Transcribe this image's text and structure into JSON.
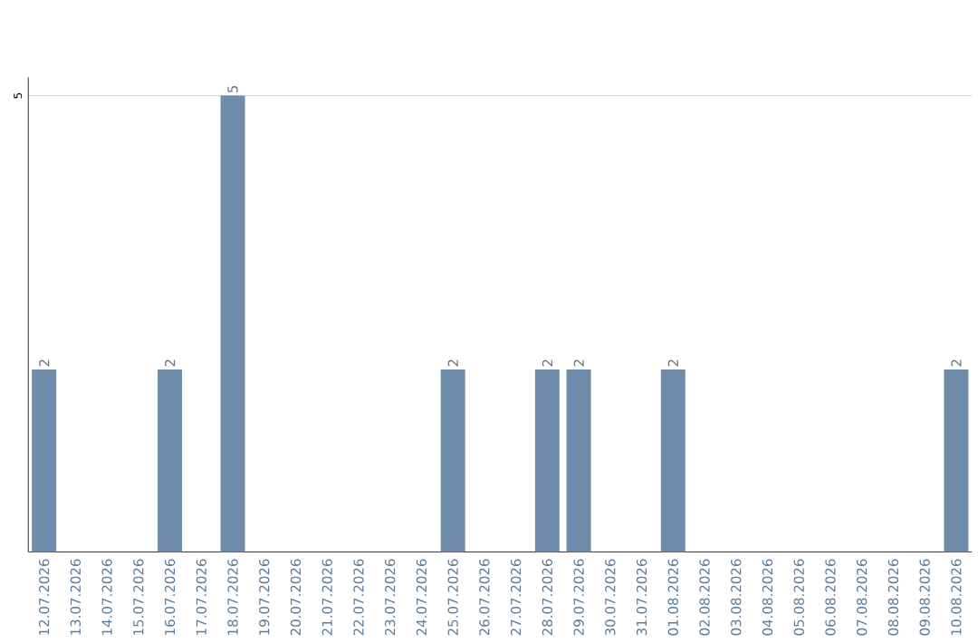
{
  "chart_data": {
    "type": "bar",
    "categories": [
      "12.07.2026",
      "13.07.2026",
      "14.07.2026",
      "15.07.2026",
      "16.07.2026",
      "17.07.2026",
      "18.07.2026",
      "19.07.2026",
      "20.07.2026",
      "21.07.2026",
      "22.07.2026",
      "23.07.2026",
      "24.07.2026",
      "25.07.2026",
      "26.07.2026",
      "27.07.2026",
      "28.07.2026",
      "29.07.2026",
      "30.07.2026",
      "31.07.2026",
      "01.08.2026",
      "02.08.2026",
      "03.08.2026",
      "04.08.2026",
      "05.08.2026",
      "06.08.2026",
      "07.08.2026",
      "08.08.2026",
      "09.08.2026",
      "10.08.2026"
    ],
    "values": [
      2,
      0,
      0,
      0,
      2,
      0,
      5,
      0,
      0,
      0,
      0,
      0,
      0,
      2,
      0,
      0,
      2,
      2,
      0,
      0,
      2,
      0,
      0,
      0,
      0,
      0,
      0,
      0,
      0,
      2
    ],
    "value_labels": [
      "2",
      null,
      null,
      null,
      "2",
      null,
      "5",
      null,
      null,
      null,
      null,
      null,
      null,
      "2",
      null,
      null,
      "2",
      "2",
      null,
      null,
      "2",
      null,
      null,
      null,
      null,
      null,
      null,
      null,
      null,
      "2"
    ],
    "color": "#6f8dab",
    "ylim": [
      0,
      5.2
    ],
    "yticks": [
      5
    ],
    "grid": "y"
  }
}
